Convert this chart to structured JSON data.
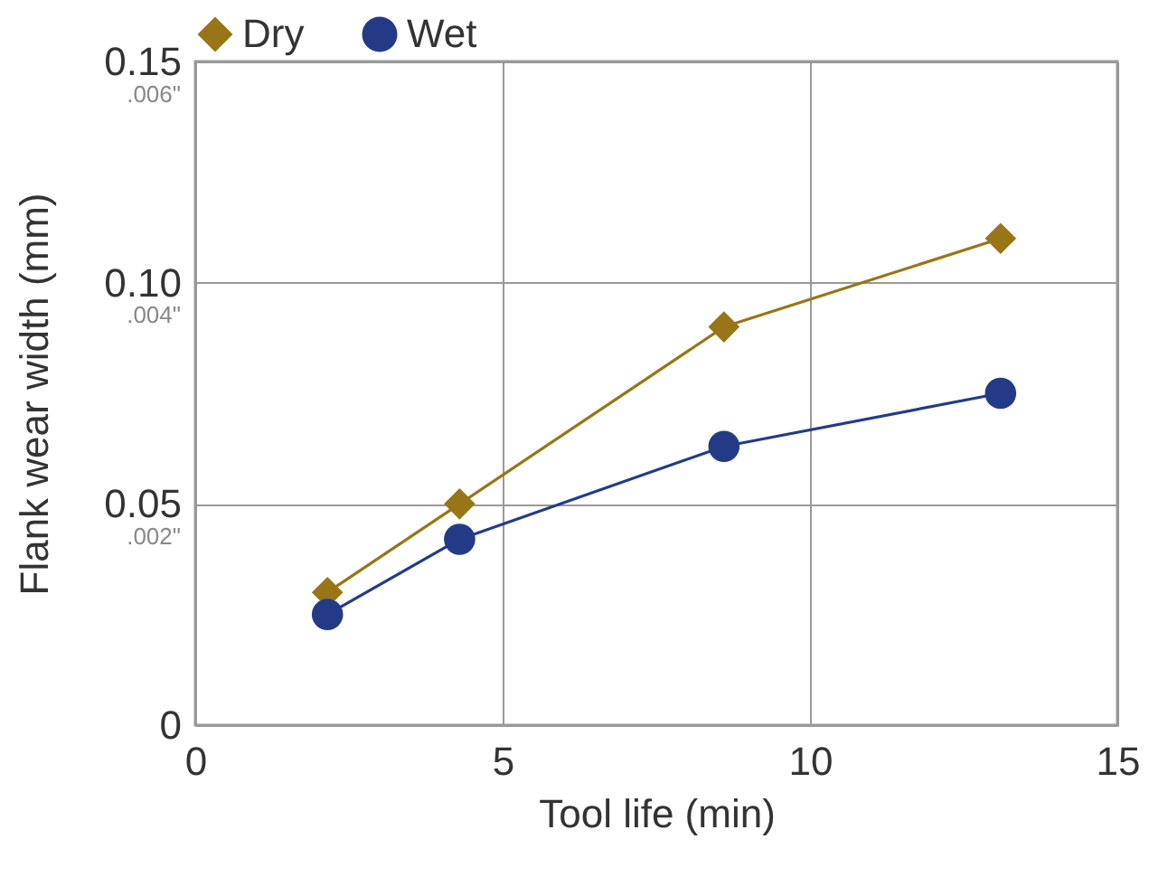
{
  "chart_data": {
    "type": "line",
    "xlabel": "Tool life (min)",
    "ylabel": "Flank wear width (mm)",
    "x": [
      2.15,
      4.3,
      8.6,
      13.1
    ],
    "series": [
      {
        "name": "Dry",
        "color": "#987617",
        "marker": "diamond",
        "values": [
          0.03,
          0.05,
          0.09,
          0.11
        ]
      },
      {
        "name": "Wet",
        "color": "#233b87",
        "marker": "circle",
        "values": [
          0.025,
          0.042,
          0.063,
          0.075
        ]
      }
    ],
    "xlim": [
      0,
      15
    ],
    "xticks": [
      0,
      5,
      10,
      15
    ],
    "ylim": [
      0,
      0.15
    ],
    "yticks": [
      0,
      {
        "value": 0.05,
        "label": "0.05"
      },
      {
        "value": 0.1,
        "label": "0.10"
      },
      0.15
    ],
    "y2lim": [
      0.0003,
      0.0063
    ],
    "y2ticks": [
      {
        "value": 0.002,
        "label": ".002\""
      },
      {
        "value": 0.004,
        "label": ".004\""
      },
      {
        "value": 0.006,
        "label": ".006\""
      }
    ],
    "grid": true,
    "legend": "top",
    "line_style": "solid"
  }
}
